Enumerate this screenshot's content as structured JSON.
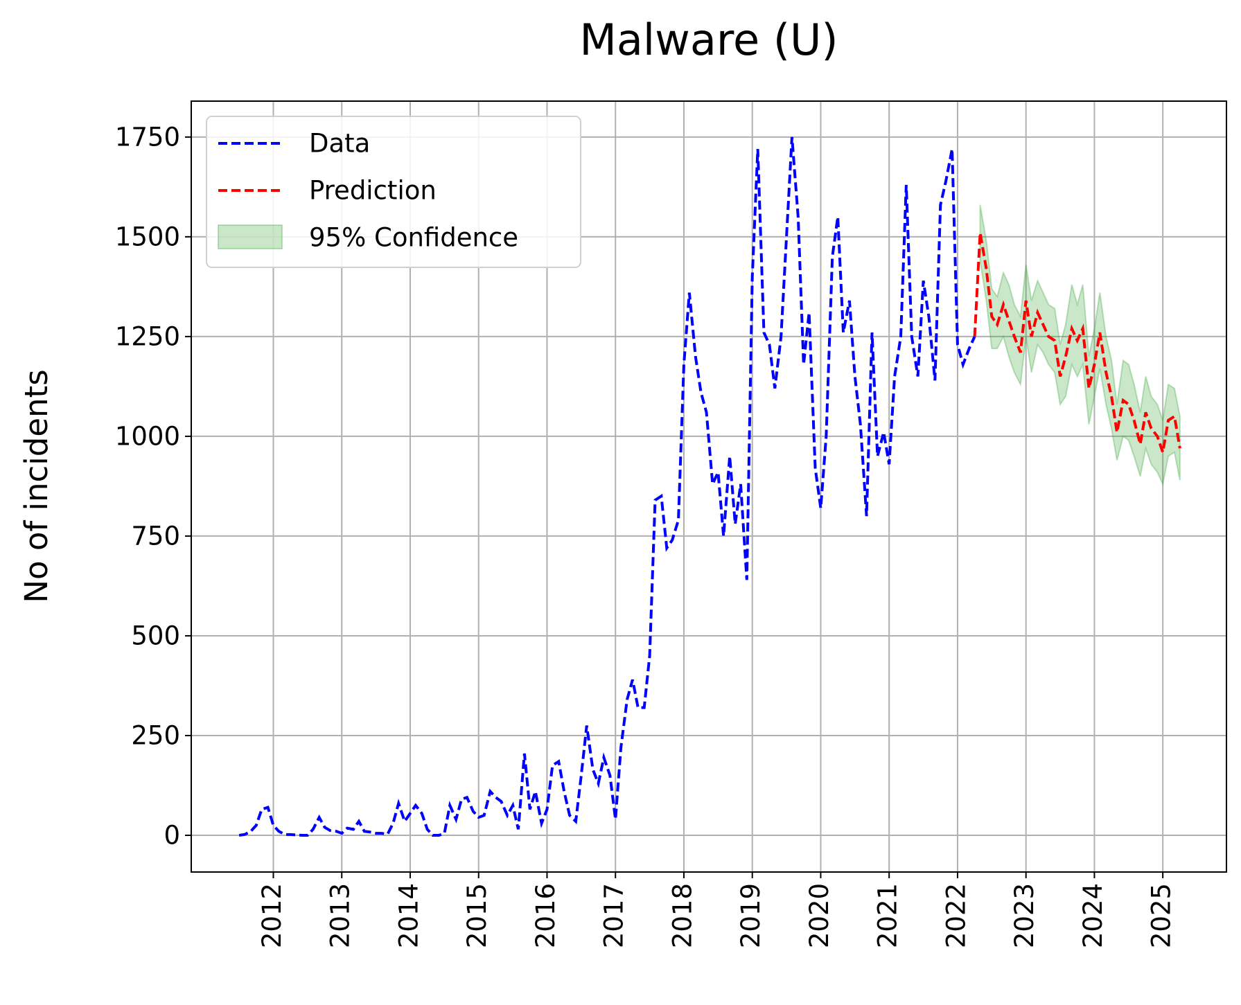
{
  "chart_data": {
    "type": "line",
    "title": "Malware (U)",
    "y_label": "No of incidents",
    "xlim": [
      2010.8,
      2025.93
    ],
    "ylim": [
      -92,
      1840
    ],
    "xticks": [
      2012,
      2013,
      2014,
      2015,
      2016,
      2017,
      2018,
      2019,
      2020,
      2021,
      2022,
      2023,
      2024,
      2025
    ],
    "yticks": [
      0,
      250,
      500,
      750,
      1000,
      1250,
      1500,
      1750
    ],
    "grid": true,
    "legend": "upper left",
    "series": [
      {
        "name": "Data",
        "color": "#0000ff",
        "style": "dashed",
        "x": [
          2011.5,
          2011.58,
          2011.67,
          2011.75,
          2011.83,
          2011.92,
          2012.0,
          2012.08,
          2012.17,
          2012.25,
          2012.33,
          2012.42,
          2012.5,
          2012.58,
          2012.67,
          2012.75,
          2012.83,
          2012.92,
          2013.0,
          2013.08,
          2013.17,
          2013.25,
          2013.33,
          2013.42,
          2013.5,
          2013.58,
          2013.67,
          2013.75,
          2013.83,
          2013.92,
          2014.0,
          2014.08,
          2014.17,
          2014.25,
          2014.33,
          2014.42,
          2014.5,
          2014.58,
          2014.67,
          2014.75,
          2014.83,
          2014.92,
          2015.0,
          2015.08,
          2015.17,
          2015.25,
          2015.33,
          2015.42,
          2015.5,
          2015.58,
          2015.67,
          2015.75,
          2015.83,
          2015.92,
          2016.0,
          2016.08,
          2016.17,
          2016.25,
          2016.33,
          2016.42,
          2016.5,
          2016.58,
          2016.67,
          2016.75,
          2016.83,
          2016.92,
          2017.0,
          2017.08,
          2017.17,
          2017.25,
          2017.33,
          2017.42,
          2017.5,
          2017.58,
          2017.67,
          2017.75,
          2017.83,
          2017.92,
          2018.0,
          2018.08,
          2018.17,
          2018.25,
          2018.33,
          2018.42,
          2018.5,
          2018.58,
          2018.67,
          2018.75,
          2018.83,
          2018.92,
          2019.0,
          2019.08,
          2019.17,
          2019.25,
          2019.33,
          2019.42,
          2019.5,
          2019.58,
          2019.67,
          2019.75,
          2019.83,
          2019.92,
          2020.0,
          2020.08,
          2020.17,
          2020.25,
          2020.33,
          2020.42,
          2020.5,
          2020.58,
          2020.67,
          2020.75,
          2020.83,
          2020.92,
          2021.0,
          2021.08,
          2021.17,
          2021.25,
          2021.33,
          2021.42,
          2021.5,
          2021.58,
          2021.67,
          2021.75,
          2021.83,
          2021.92,
          2022.0,
          2022.08,
          2022.17,
          2022.25
        ],
        "values": [
          0,
          2,
          10,
          25,
          65,
          70,
          25,
          10,
          2,
          2,
          1,
          0,
          0,
          15,
          45,
          20,
          12,
          10,
          5,
          18,
          15,
          35,
          10,
          8,
          5,
          5,
          3,
          30,
          80,
          35,
          55,
          75,
          55,
          15,
          0,
          0,
          5,
          75,
          40,
          90,
          95,
          60,
          45,
          50,
          110,
          95,
          85,
          50,
          75,
          15,
          205,
          65,
          110,
          30,
          65,
          175,
          185,
          110,
          50,
          35,
          150,
          275,
          165,
          130,
          195,
          150,
          40,
          220,
          340,
          390,
          320,
          320,
          450,
          840,
          850,
          720,
          740,
          790,
          1180,
          1360,
          1200,
          1110,
          1060,
          880,
          910,
          750,
          950,
          780,
          880,
          640,
          1400,
          1720,
          1260,
          1230,
          1120,
          1250,
          1500,
          1750,
          1550,
          1180,
          1310,
          920,
          820,
          1000,
          1450,
          1550,
          1260,
          1340,
          1150,
          1030,
          800,
          1260,
          950,
          1010,
          930,
          1150,
          1250,
          1630,
          1250,
          1150,
          1390,
          1300,
          1140,
          1580,
          1640,
          1720,
          1230,
          1180,
          1220,
          1250
        ]
      },
      {
        "name": "Prediction",
        "color": "#ff0000",
        "style": "dashed",
        "x": [
          2022.25,
          2022.33,
          2022.42,
          2022.5,
          2022.58,
          2022.67,
          2022.75,
          2022.83,
          2022.92,
          2023.0,
          2023.08,
          2023.17,
          2023.25,
          2023.33,
          2023.42,
          2023.5,
          2023.58,
          2023.67,
          2023.75,
          2023.83,
          2023.92,
          2024.0,
          2024.08,
          2024.17,
          2024.25,
          2024.33,
          2024.42,
          2024.5,
          2024.58,
          2024.67,
          2024.75,
          2024.83,
          2024.92,
          2025.0,
          2025.08,
          2025.17,
          2025.25
        ],
        "values": [
          1250,
          1510,
          1420,
          1300,
          1280,
          1330,
          1290,
          1250,
          1210,
          1340,
          1250,
          1310,
          1280,
          1250,
          1240,
          1150,
          1200,
          1270,
          1240,
          1270,
          1120,
          1180,
          1260,
          1160,
          1100,
          1010,
          1090,
          1080,
          1040,
          980,
          1060,
          1020,
          1000,
          960,
          1040,
          1050,
          970
        ]
      },
      {
        "name": "95% Confidence",
        "color": "#2ca02c",
        "style": "band",
        "x": [
          2022.25,
          2022.33,
          2022.42,
          2022.5,
          2022.58,
          2022.67,
          2022.75,
          2022.83,
          2022.92,
          2023.0,
          2023.08,
          2023.17,
          2023.25,
          2023.33,
          2023.42,
          2023.5,
          2023.58,
          2023.67,
          2023.75,
          2023.83,
          2023.92,
          2024.0,
          2024.08,
          2024.17,
          2024.25,
          2024.33,
          2024.42,
          2024.5,
          2024.58,
          2024.67,
          2024.75,
          2024.83,
          2024.92,
          2025.0,
          2025.08,
          2025.17,
          2025.25
        ],
        "lower": [
          null,
          1440,
          1340,
          1220,
          1220,
          1250,
          1200,
          1160,
          1130,
          1250,
          1160,
          1230,
          1210,
          1180,
          1160,
          1080,
          1100,
          1180,
          1150,
          1180,
          1030,
          1100,
          1170,
          1080,
          1020,
          940,
          1000,
          990,
          950,
          900,
          970,
          930,
          910,
          880,
          950,
          960,
          890
        ],
        "upper": [
          null,
          1580,
          1490,
          1370,
          1350,
          1410,
          1380,
          1330,
          1300,
          1430,
          1340,
          1390,
          1360,
          1330,
          1320,
          1230,
          1280,
          1380,
          1330,
          1380,
          1200,
          1270,
          1360,
          1250,
          1190,
          1080,
          1190,
          1180,
          1130,
          1060,
          1150,
          1100,
          1080,
          1040,
          1130,
          1120,
          1050
        ]
      }
    ]
  }
}
